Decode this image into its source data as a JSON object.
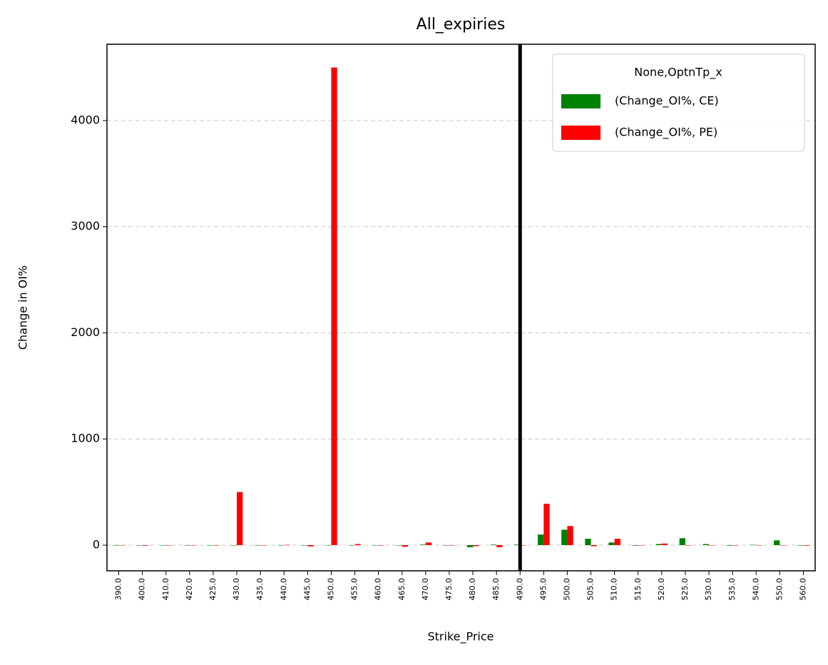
{
  "chart_data": {
    "type": "bar",
    "title": "All_expiries",
    "x_label": "Strike_Price",
    "y_label": "Change in OI%",
    "categories": [
      "390.0",
      "400.0",
      "410.0",
      "420.0",
      "425.0",
      "430.0",
      "435.0",
      "440.0",
      "445.0",
      "450.0",
      "455.0",
      "460.0",
      "465.0",
      "470.0",
      "475.0",
      "480.0",
      "485.0",
      "490.0",
      "495.0",
      "500.0",
      "505.0",
      "510.0",
      "515.0",
      "520.0",
      "525.0",
      "530.0",
      "535.0",
      "540.0",
      "550.0",
      "560.0"
    ],
    "series": [
      {
        "name": "(Change_OI%, CE)",
        "color": "#008000",
        "values": [
          0,
          0,
          0,
          0,
          0,
          0,
          0,
          0,
          0,
          0,
          0,
          0,
          0,
          5,
          0,
          -20,
          5,
          5,
          100,
          145,
          60,
          25,
          -5,
          10,
          65,
          10,
          -5,
          3,
          45,
          0
        ]
      },
      {
        "name": "(Change_OI%, PE)",
        "color": "#ff0000",
        "values": [
          0,
          -5,
          0,
          0,
          0,
          500,
          0,
          3,
          -12,
          4500,
          10,
          0,
          -15,
          25,
          0,
          -10,
          -20,
          0,
          390,
          180,
          -10,
          60,
          0,
          15,
          0,
          0,
          0,
          0,
          0,
          -5
        ]
      }
    ],
    "legend_title": "None,OptnTp_x",
    "legend": "upper right",
    "ylim": [
      -242,
      4719
    ],
    "yticks": [
      0,
      1000,
      2000,
      3000,
      4000
    ],
    "grid": true,
    "vline": "490.0"
  }
}
